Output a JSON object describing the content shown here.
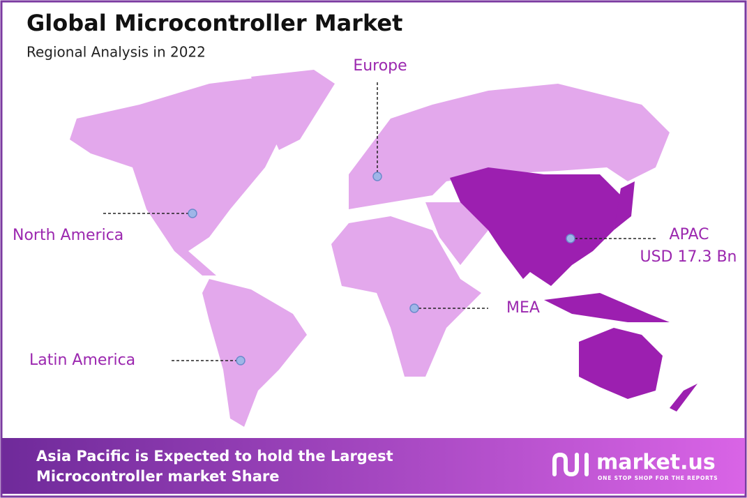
{
  "header": {
    "title": "Global Microcontroller Market",
    "subtitle": "Regional Analysis in 2022"
  },
  "regions": {
    "europe": "Europe",
    "north_america": "North America",
    "latin_america": "Latin America",
    "mea": "MEA",
    "apac": "APAC",
    "apac_value": "USD 17.3 Bn"
  },
  "footer": {
    "line1": "Asia Pacific is Expected to hold the Largest",
    "line2": "Microcontroller market Share",
    "logo": "market.us",
    "tagline": "ONE STOP SHOP FOR THE REPORTS"
  }
}
